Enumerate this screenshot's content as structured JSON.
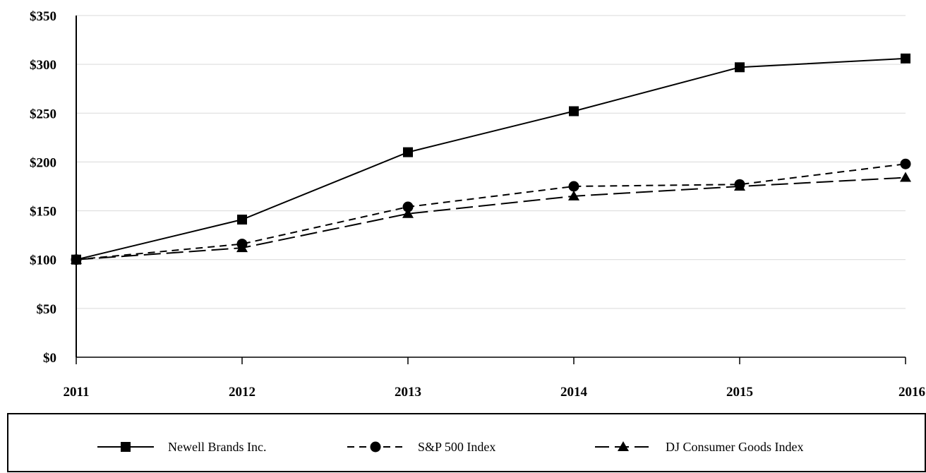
{
  "chart_data": {
    "type": "line",
    "x": [
      "2011",
      "2012",
      "2013",
      "2014",
      "2015",
      "2016"
    ],
    "y_ticks": [
      "$0",
      "$50",
      "$100",
      "$150",
      "$200",
      "$250",
      "$300",
      "$350"
    ],
    "ylim": [
      0,
      350
    ],
    "grid": true,
    "legend_position": "bottom",
    "series": [
      {
        "name": "Newell Brands Inc.",
        "marker": "square",
        "dash": "solid",
        "values": [
          100,
          141,
          210,
          252,
          297,
          306
        ]
      },
      {
        "name": "S&P 500 Index",
        "marker": "circle",
        "dash": "short-dash",
        "values": [
          100,
          116,
          154,
          175,
          177,
          198
        ]
      },
      {
        "name": "DJ Consumer Goods Index",
        "marker": "triangle",
        "dash": "long-dash",
        "values": [
          100,
          112,
          147,
          165,
          175,
          184
        ]
      }
    ]
  }
}
